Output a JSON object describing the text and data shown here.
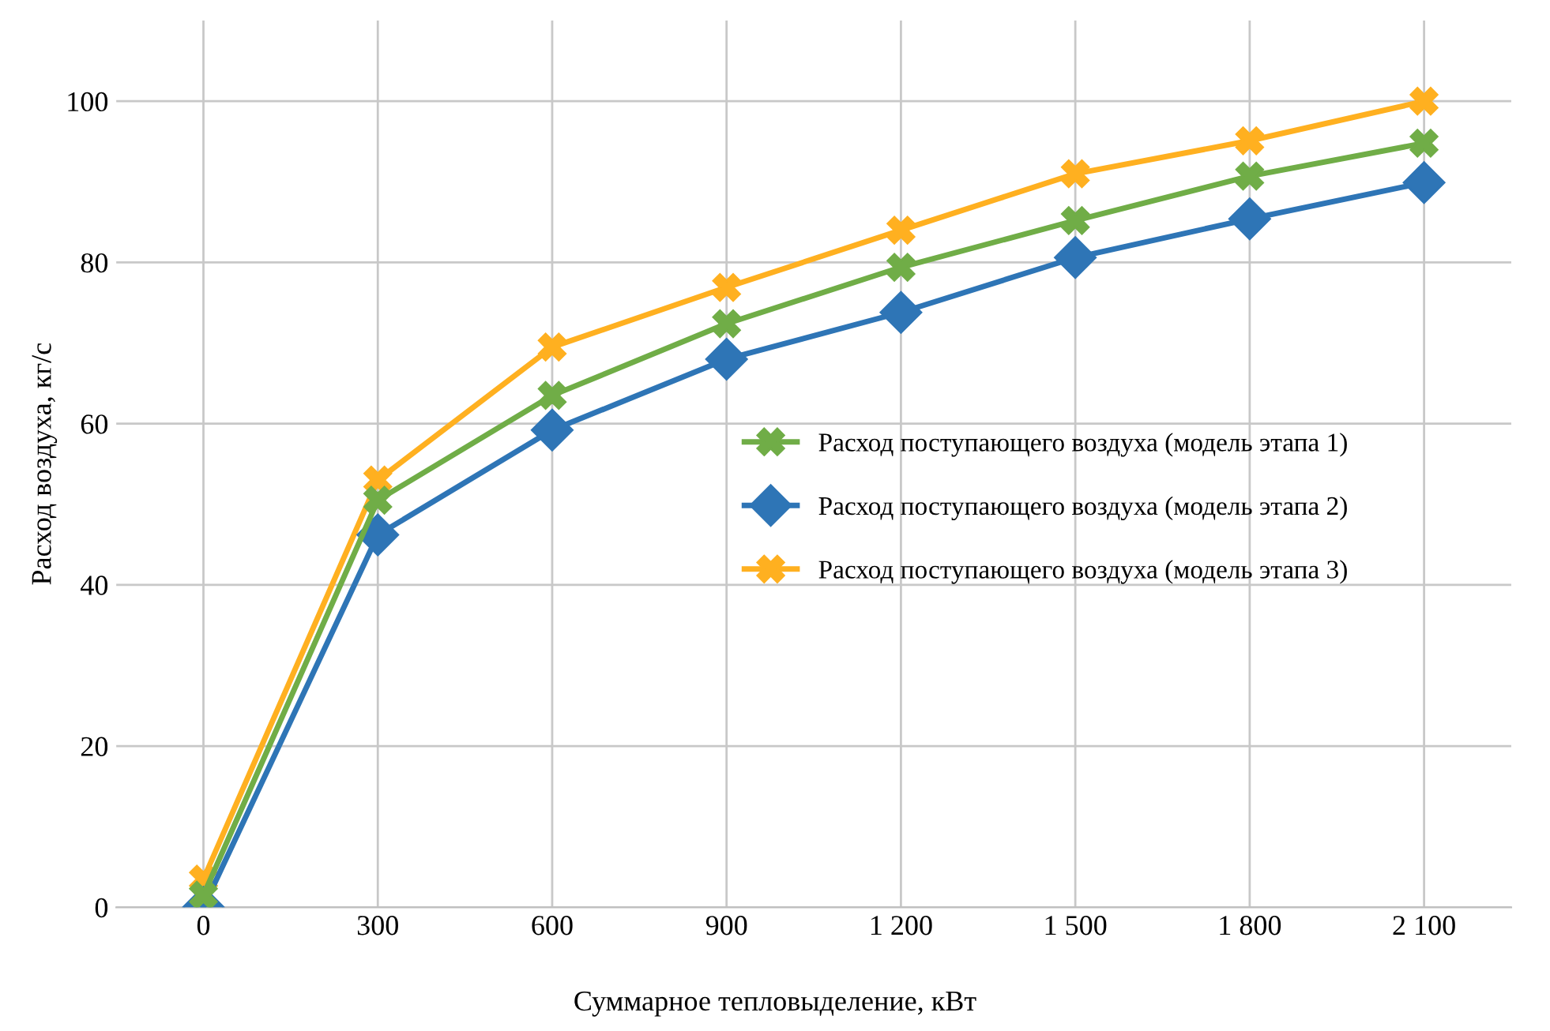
{
  "chart_data": {
    "type": "line",
    "xlabel": "Суммарное тепловыделение, кВт",
    "ylabel": "Расход воздуха, кг/с",
    "categories": [
      "0",
      "300",
      "600",
      "900",
      "1 200",
      "1 500",
      "1 800",
      "2 100"
    ],
    "series": [
      {
        "name": "Расход поступающего воздуха (модель этапа 1)",
        "color": "#70ad47",
        "marker": "cross",
        "values": [
          1.5,
          50.5,
          63.5,
          72.4,
          79.4,
          85.2,
          90.7,
          94.8
        ]
      },
      {
        "name": "Расход поступающего воздуха (модель этапа 2)",
        "color": "#2e75b6",
        "marker": "diamond",
        "values": [
          0,
          46.2,
          59.2,
          68,
          73.8,
          80.6,
          85.4,
          89.9
        ]
      },
      {
        "name": "Расход поступающего воздуха (модель этапа 3)",
        "color": "#ffb020",
        "marker": "cross",
        "values": [
          3.5,
          53,
          69.5,
          76.9,
          84,
          91,
          95.1,
          100
        ]
      }
    ],
    "ylim": [
      0,
      110
    ],
    "yticks": [
      0,
      20,
      40,
      60,
      80,
      100
    ],
    "grid": true,
    "legend": "right",
    "line_style": "solid"
  }
}
